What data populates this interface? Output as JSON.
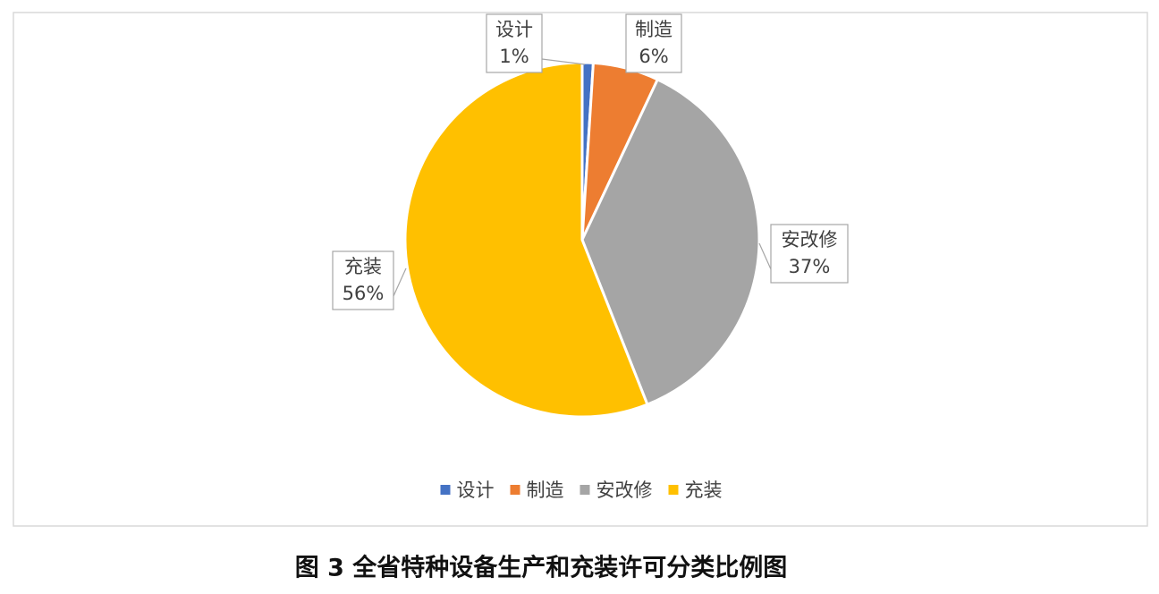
{
  "chart_data": {
    "type": "pie",
    "title": "图 3  全省特种设备生产和充装许可分类比例图",
    "categories": [
      "设计",
      "制造",
      "安改修",
      "充装"
    ],
    "values": [
      1,
      6,
      37,
      56
    ],
    "value_labels": [
      "1%",
      "6%",
      "37%",
      "56%"
    ],
    "colors": [
      "#4472c4",
      "#ed7d31",
      "#a5a5a5",
      "#ffc000"
    ],
    "legend": "bottom"
  }
}
